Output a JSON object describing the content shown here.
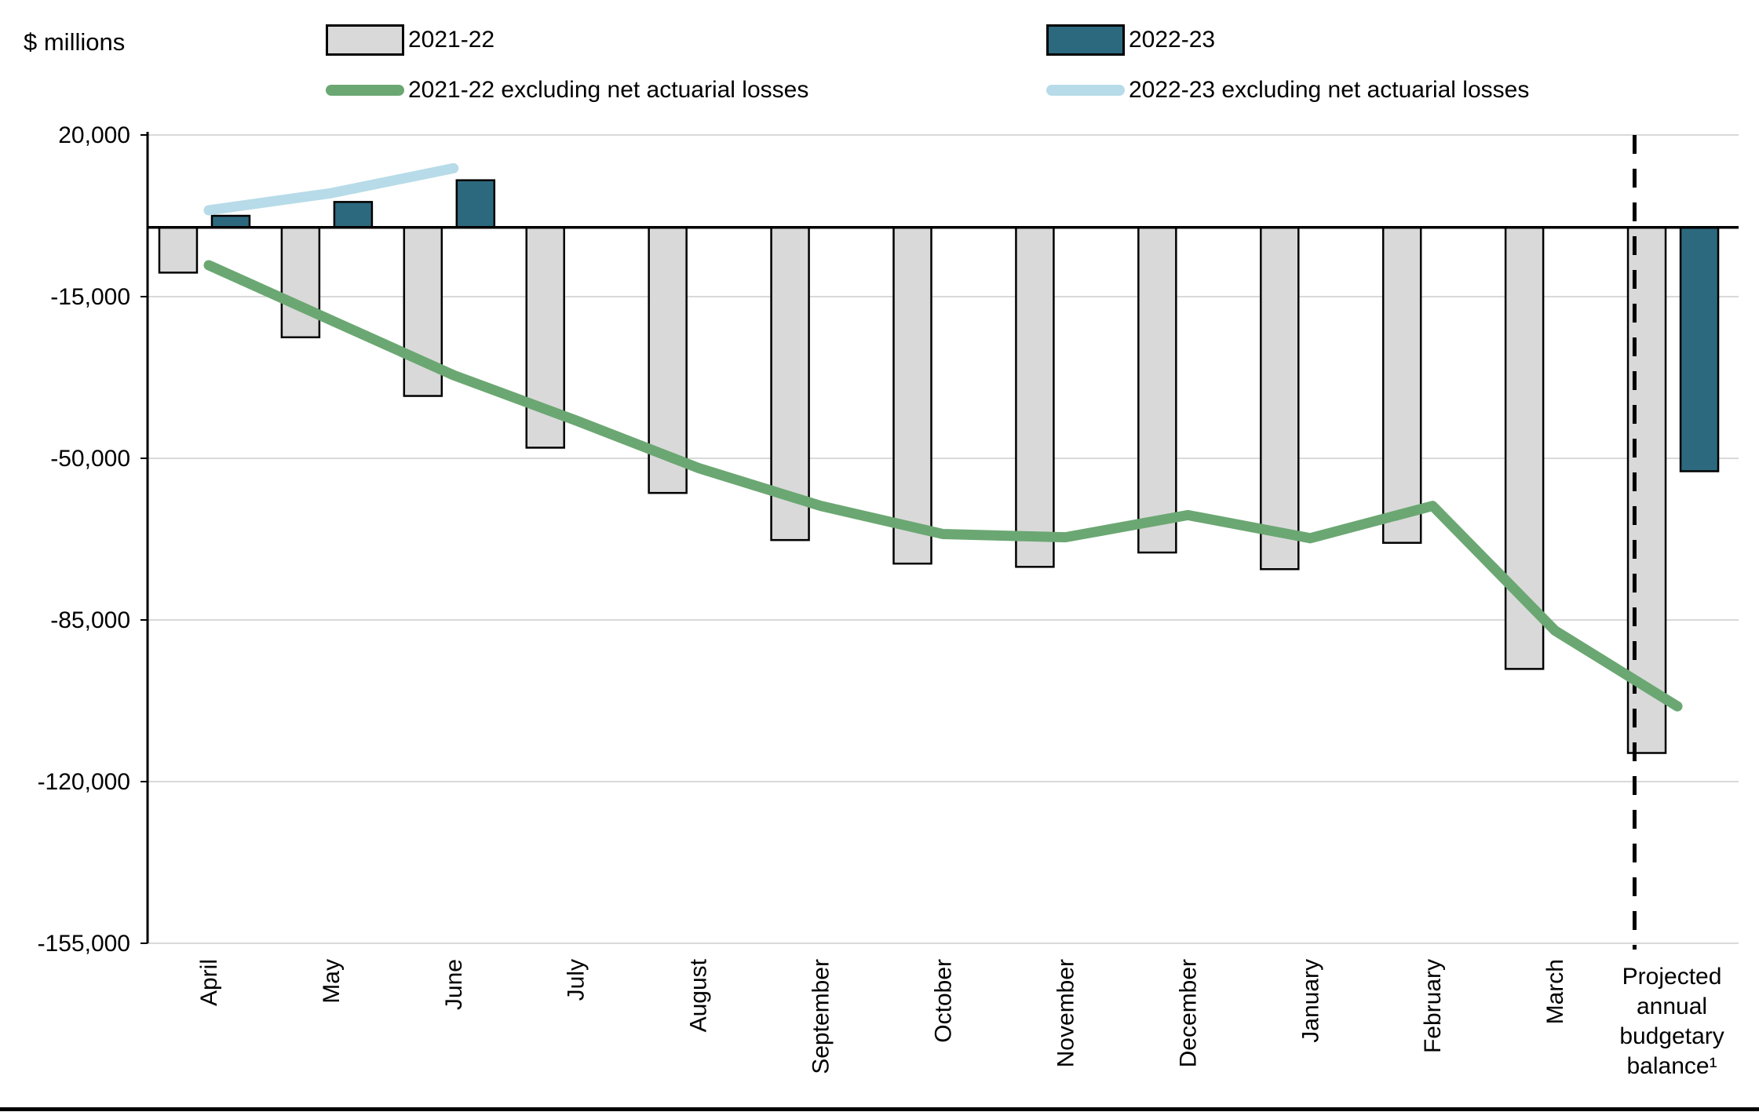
{
  "header": {
    "y_axis_unit_label": "$ millions"
  },
  "legend": {
    "items": [
      {
        "id": "series-2021-22",
        "label": "2021-22",
        "swatch": "bar",
        "color": "#D9D9D9",
        "border": "#000000"
      },
      {
        "id": "series-2022-23",
        "label": "2022-23",
        "swatch": "bar",
        "color": "#2D697E",
        "border": "#000000"
      },
      {
        "id": "series-2021-22-excl",
        "label": "2021-22 excluding net actuarial losses",
        "swatch": "line",
        "color": "#6BA772"
      },
      {
        "id": "series-2022-23-excl",
        "label": "2022-23 excluding net actuarial losses",
        "swatch": "line",
        "color": "#B7DBE8"
      }
    ]
  },
  "chart_data": {
    "type": "bar",
    "title": "",
    "ylabel": "$ millions",
    "xlabel": "",
    "grid": true,
    "legend_position": "top",
    "ylim": [
      -155000,
      20000
    ],
    "y_ticks": [
      20000,
      -15000,
      -50000,
      -85000,
      -120000,
      -155000
    ],
    "categories": [
      "April",
      "May",
      "June",
      "July",
      "August",
      "September",
      "October",
      "November",
      "December",
      "January",
      "February",
      "March",
      "Projected annual budgetary balance¹"
    ],
    "series": [
      {
        "name": "2021-22",
        "type": "bar",
        "color": "#D9D9D9",
        "border": "#000000",
        "values": [
          -9800,
          -23800,
          -36500,
          -47700,
          -57500,
          -67700,
          -72800,
          -73500,
          -70400,
          -74000,
          -68300,
          -95600,
          -113800
        ]
      },
      {
        "name": "2022-23",
        "type": "bar",
        "color": "#2D697E",
        "border": "#000000",
        "values": [
          2500,
          5500,
          10200,
          null,
          null,
          null,
          null,
          null,
          null,
          null,
          null,
          null,
          -52800
        ]
      },
      {
        "name": "2021-22 excluding net actuarial losses",
        "type": "line",
        "color": "#6BA772",
        "values": [
          -8200,
          -20100,
          -32000,
          -41800,
          -52100,
          -60300,
          -66400,
          -67100,
          -62300,
          -67300,
          -60300,
          -87300,
          -103700
        ]
      },
      {
        "name": "2022-23 excluding net actuarial losses",
        "type": "line",
        "color": "#B7DBE8",
        "values": [
          3700,
          7400,
          12800,
          null,
          null,
          null,
          null,
          null,
          null,
          null,
          null,
          null,
          null
        ]
      }
    ],
    "separator": {
      "type": "dashed-vertical",
      "after_category_index": 11,
      "position_fraction": 0.15
    },
    "axis_colors": {
      "gridline": "#D9D9D9",
      "axis": "#000000",
      "zero_line": "#000000"
    }
  }
}
